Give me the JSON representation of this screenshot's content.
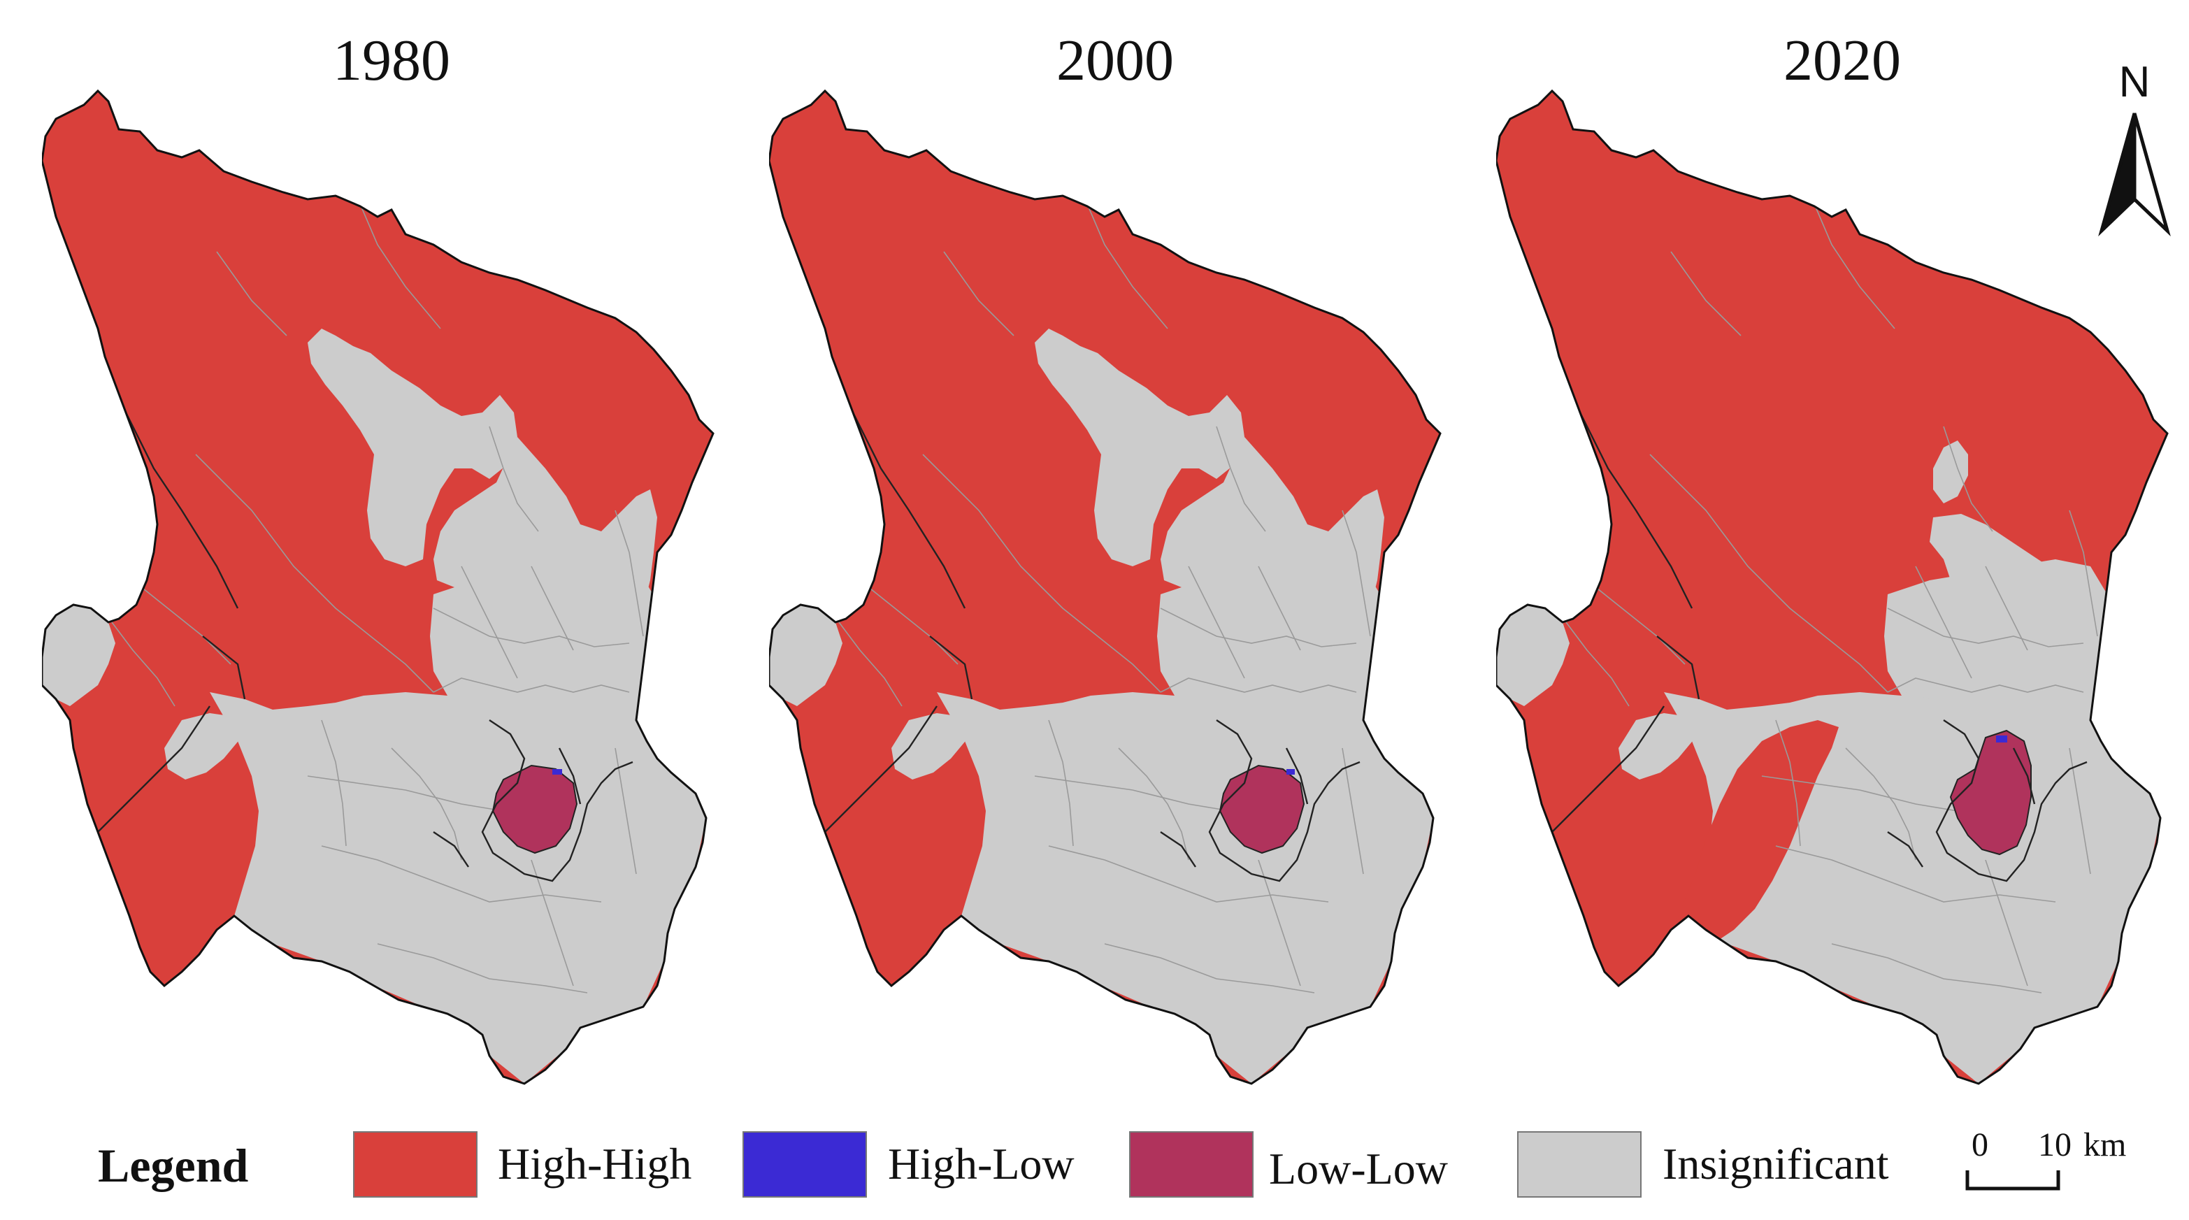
{
  "panels": [
    {
      "year": "1980"
    },
    {
      "year": "2000"
    },
    {
      "year": "2020"
    }
  ],
  "north_label": "N",
  "legend": {
    "title": "Legend",
    "items": [
      {
        "label": "High-High",
        "color": "#d9403b"
      },
      {
        "label": "High-Low",
        "color": "#3b2ad4"
      },
      {
        "label": "Low-Low",
        "color": "#b0335c"
      },
      {
        "label": "Insignificant",
        "color": "#cccccc"
      }
    ]
  },
  "scale_bar": {
    "start": "0",
    "end": "10",
    "unit": "km"
  }
}
